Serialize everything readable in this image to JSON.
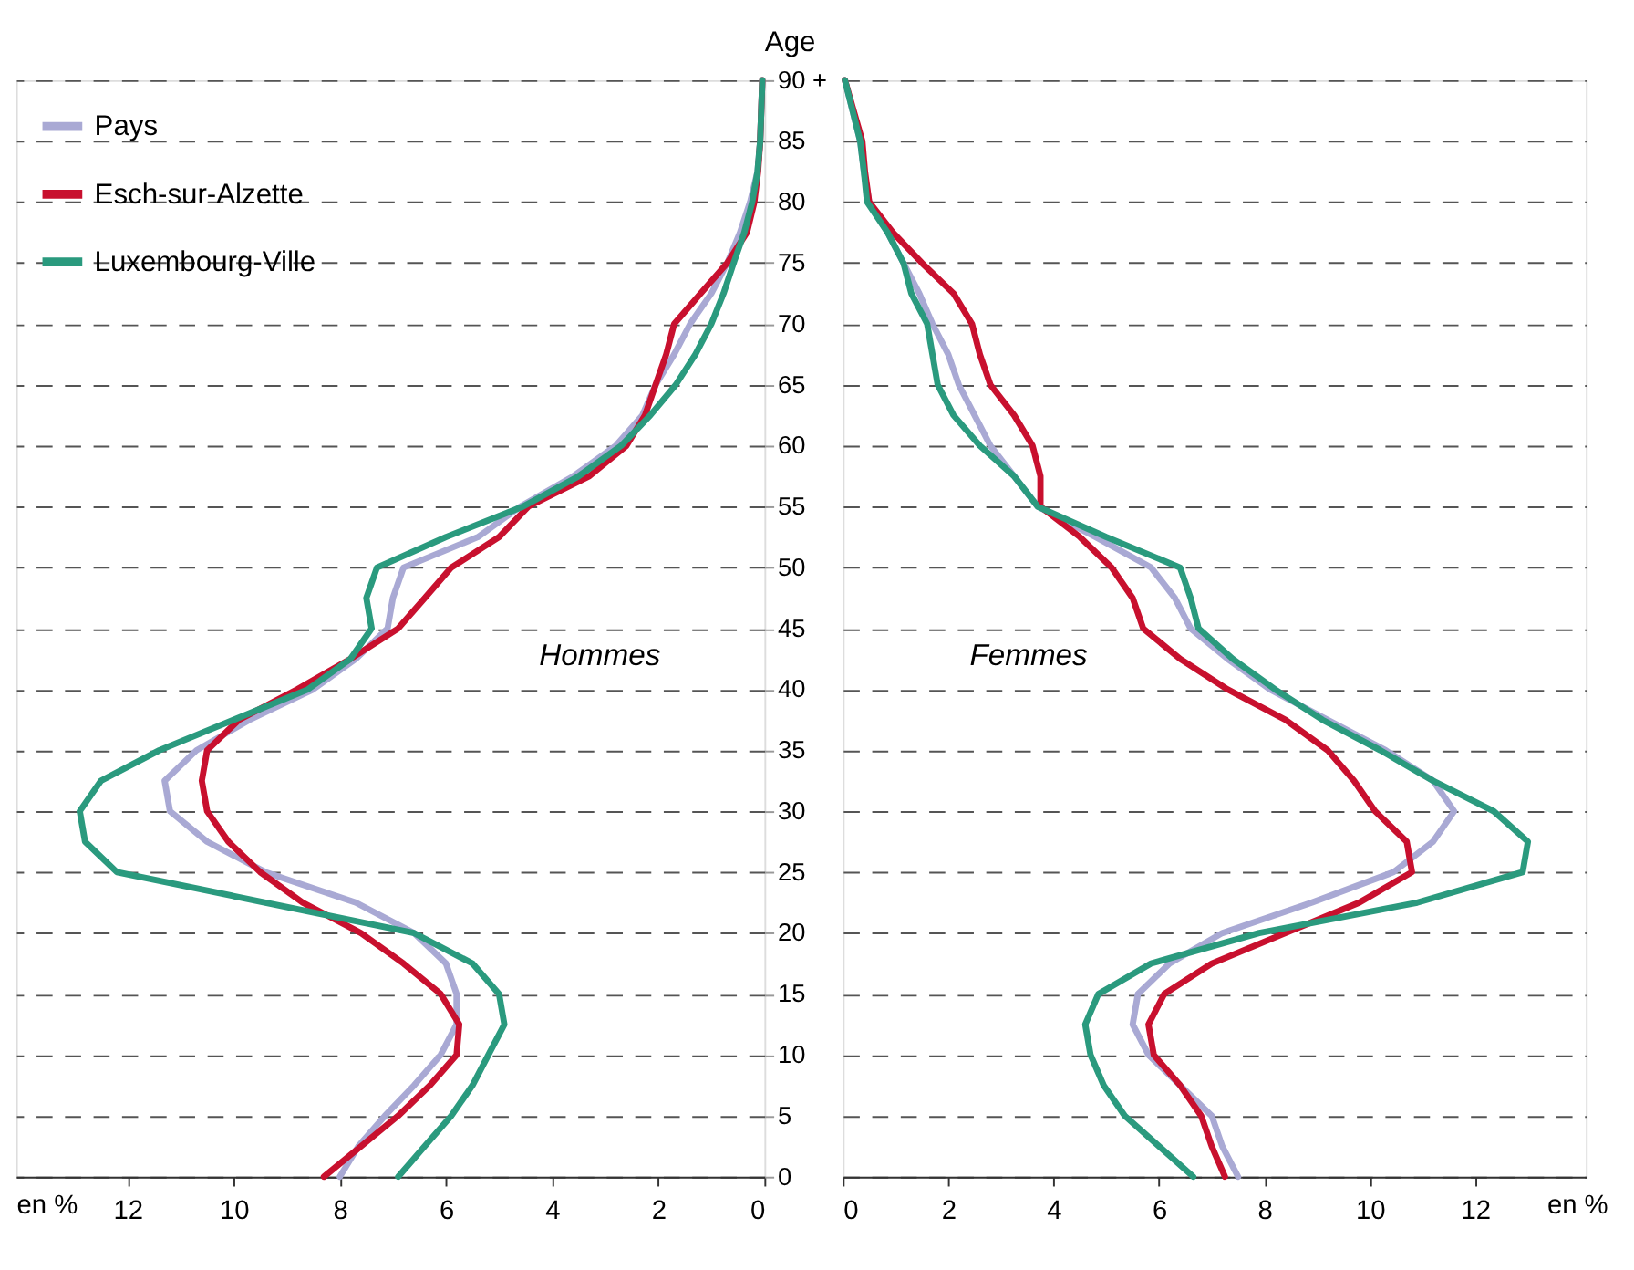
{
  "chart_data": [
    {
      "type": "line",
      "orientation": "horizontal",
      "ylabel": "Age",
      "xlabel": "en %",
      "annotations": [
        "Hommes"
      ],
      "legend": "top left",
      "grid": "y",
      "line_style": "solid",
      "x": [
        0,
        2.5,
        5,
        7.5,
        10,
        12.5,
        15,
        17.5,
        20,
        22.5,
        25,
        27.5,
        30,
        32.5,
        35,
        37.5,
        40,
        42.5,
        45,
        47.5,
        50,
        52.5,
        55,
        57.5,
        60,
        62.5,
        65,
        67.5,
        70,
        72.5,
        75,
        77.5,
        80,
        82.5,
        85,
        90
      ],
      "xlim": [
        14.1,
        0
      ],
      "xticks": [
        12,
        10,
        8,
        6,
        4,
        2,
        0
      ],
      "ylim": [
        0,
        90
      ],
      "yticks": [
        0,
        5,
        10,
        15,
        20,
        25,
        30,
        35,
        40,
        45,
        50,
        55,
        60,
        65,
        70,
        75,
        80,
        85,
        {
          "value": 90,
          "label": "90 +"
        }
      ],
      "series": [
        {
          "name": "Pays",
          "color": "#a9a9d4",
          "values": [
            8.0,
            7.65,
            7.15,
            6.6,
            6.1,
            5.8,
            5.8,
            6.0,
            6.6,
            7.7,
            9.4,
            10.5,
            11.2,
            11.3,
            10.7,
            9.7,
            8.5,
            7.7,
            7.1,
            7.0,
            6.8,
            5.4,
            4.6,
            3.6,
            2.8,
            2.3,
            2.05,
            1.7,
            1.4,
            1.0,
            0.7,
            0.46,
            0.27,
            0.13,
            0.08,
            0.04
          ]
        },
        {
          "name": "Esch-sur-Alzette",
          "color": "#c8102e",
          "values": [
            8.3,
            7.6,
            6.9,
            6.3,
            5.8,
            5.75,
            6.1,
            6.8,
            7.6,
            8.7,
            9.5,
            10.1,
            10.5,
            10.6,
            10.5,
            9.9,
            8.8,
            7.8,
            6.9,
            6.4,
            5.9,
            5.0,
            4.45,
            3.3,
            2.6,
            2.25,
            2.05,
            1.85,
            1.7,
            1.2,
            0.7,
            0.33,
            0.19,
            0.12,
            0.08,
            0.04
          ]
        },
        {
          "name": "Luxembourg-Ville",
          "color": "#2a9a7e",
          "values": [
            6.9,
            6.4,
            5.9,
            5.5,
            5.2,
            4.9,
            5.0,
            5.5,
            6.6,
            9.4,
            12.2,
            12.8,
            12.9,
            12.5,
            11.4,
            10.0,
            8.6,
            7.8,
            7.4,
            7.5,
            7.3,
            6.0,
            4.55,
            3.5,
            2.7,
            2.15,
            1.67,
            1.3,
            1.0,
            0.77,
            0.58,
            0.38,
            0.23,
            0.13,
            0.08,
            0.04
          ]
        }
      ]
    },
    {
      "type": "line",
      "orientation": "horizontal",
      "xlabel": "en %",
      "annotations": [
        "Femmes"
      ],
      "grid": "y",
      "line_style": "solid",
      "tick_labels": "x",
      "x": [
        0,
        2.5,
        5,
        7.5,
        10,
        12.5,
        15,
        17.5,
        20,
        22.5,
        25,
        27.5,
        30,
        32.5,
        35,
        37.5,
        40,
        42.5,
        45,
        47.5,
        50,
        52.5,
        55,
        57.5,
        60,
        62.5,
        65,
        67.5,
        70,
        72.5,
        75,
        77.5,
        80,
        82.5,
        85,
        90
      ],
      "xlim": [
        0,
        14.1
      ],
      "xticks": [
        0,
        2,
        4,
        6,
        8,
        10,
        12
      ],
      "ylim": [
        0,
        90
      ],
      "yticks": [
        0,
        5,
        10,
        15,
        20,
        25,
        30,
        35,
        40,
        45,
        50,
        55,
        60,
        65,
        70,
        75,
        80,
        85,
        90
      ],
      "series": [
        {
          "color": "#a9a9d4",
          "values": [
            7.5,
            7.2,
            7.0,
            6.4,
            5.8,
            5.5,
            5.6,
            6.2,
            7.2,
            8.9,
            10.45,
            11.2,
            11.6,
            11.2,
            10.3,
            9.2,
            8.1,
            7.3,
            6.6,
            6.3,
            5.85,
            4.8,
            3.7,
            3.25,
            2.8,
            2.5,
            2.2,
            2.0,
            1.7,
            1.45,
            1.15,
            0.85,
            0.5,
            0.4,
            0.33,
            0.04
          ]
        },
        {
          "color": "#c8102e",
          "values": [
            7.25,
            7.0,
            6.8,
            6.4,
            5.9,
            5.8,
            6.1,
            7.0,
            8.4,
            9.8,
            10.8,
            10.7,
            10.1,
            9.7,
            9.2,
            8.4,
            7.3,
            6.4,
            5.7,
            5.5,
            5.1,
            4.5,
            3.75,
            3.75,
            3.6,
            3.25,
            2.8,
            2.6,
            2.45,
            2.1,
            1.5,
            0.95,
            0.5,
            0.42,
            0.37,
            0.04
          ]
        },
        {
          "color": "#2a9a7e",
          "values": [
            6.65,
            6.0,
            5.35,
            4.95,
            4.7,
            4.6,
            4.85,
            5.85,
            7.9,
            10.9,
            12.9,
            13.0,
            12.35,
            11.2,
            10.2,
            9.1,
            8.2,
            7.4,
            6.75,
            6.6,
            6.4,
            5.0,
            3.7,
            3.25,
            2.6,
            2.1,
            1.8,
            1.7,
            1.6,
            1.3,
            1.15,
            0.85,
            0.46,
            0.4,
            0.33,
            0.04
          ]
        }
      ]
    }
  ]
}
